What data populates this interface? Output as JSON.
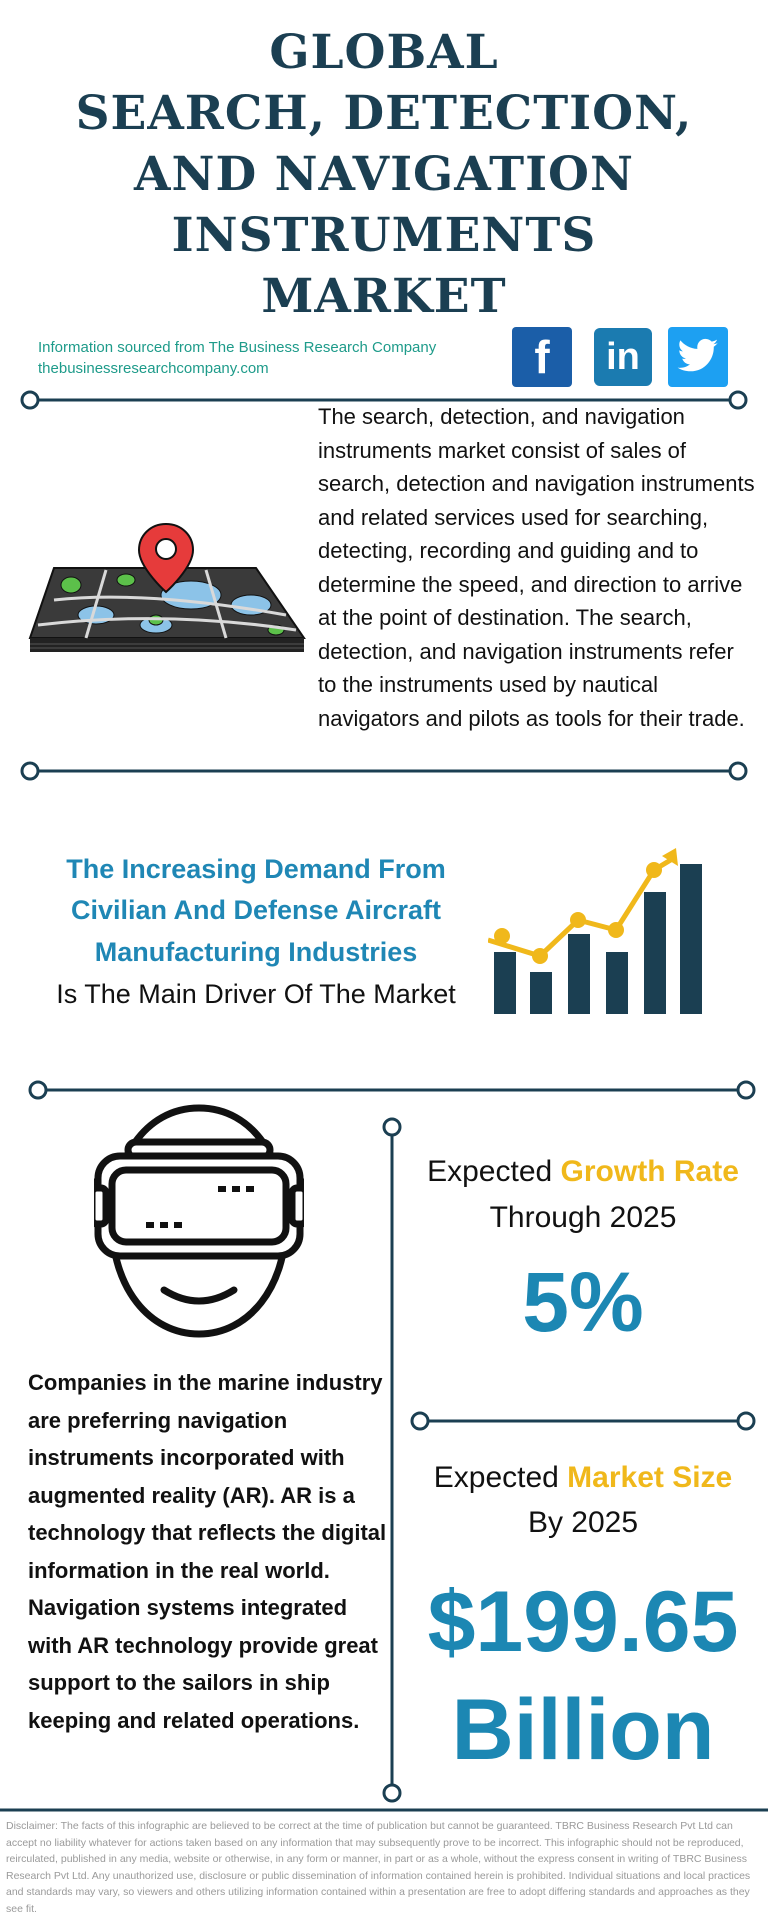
{
  "title": {
    "line1": "GLOBAL",
    "line2": "SEARCH, DETECTION,",
    "line3": "AND NAVIGATION",
    "line4": "INSTRUMENTS",
    "line5": "MARKET"
  },
  "source": {
    "line1": "Information sourced from The Business Research Company",
    "line2": "thebusinessresearchcompany.com"
  },
  "social": {
    "facebook": {
      "glyph": "f",
      "icon": "facebook-icon",
      "color": "#1b5ea8"
    },
    "linkedin": {
      "glyph": "in",
      "icon": "linkedin-icon",
      "color": "#1b7bb0"
    },
    "twitter": {
      "icon": "twitter-icon",
      "color": "#1da0f2"
    }
  },
  "description": "The search, detection, and navigation instruments market consist of sales of search, detection and navigation instruments and related services used for searching, detecting, recording and guiding and to determine the speed, and direction to arrive at the point of destination. The search, detection, and navigation instruments refer to the instruments used by nautical navigators and pilots as tools for their trade.",
  "driver": {
    "line1": "The Increasing Demand From",
    "line2": "Civilian And Defense Aircraft",
    "line3": "Manufacturing Industries",
    "line4": "Is The Main Driver Of The Market"
  },
  "ar_text": "Companies in the marine industry are preferring navigation instruments incorporated with augmented reality (AR). AR is a technology that reflects the digital information in the real world. Navigation systems integrated with AR technology provide great support to the sailors in ship keeping and related operations.",
  "growth": {
    "prefix": "Expected ",
    "highlight": "Growth Rate",
    "line2": "Through 2025",
    "value": "5%"
  },
  "market_size": {
    "prefix": "Expected ",
    "highlight": "Market Size",
    "line2": "By 2025",
    "value_line1": "$199.65",
    "value_line2": "Billion"
  },
  "disclaimer": "Disclaimer: The facts of this infographic are believed to be correct at the time of publication but cannot be guaranteed. TBRC Business Research Pvt Ltd can accept no liability whatever for actions taken based on any information that may subsequently prove to be incorrect. This infographic should not be reproduced, reirculated, published in any media, website or otherwise, in any form or manner, in part or as a whole, without the express consent in writing of TBRC Business Research Pvt Ltd. Any unauthorized use, disclosure or public dissemination of information contained herein is prohibited. Individual situations and local practices and standards may vary, so viewers and others utilizing information contained within a presentation are free to adopt differing standards and approaches as they see fit.",
  "colors": {
    "navy": "#1b3f52",
    "teal_text": "#1e9b8a",
    "blue_accent": "#1c87b3",
    "gold": "#f0b81b"
  }
}
